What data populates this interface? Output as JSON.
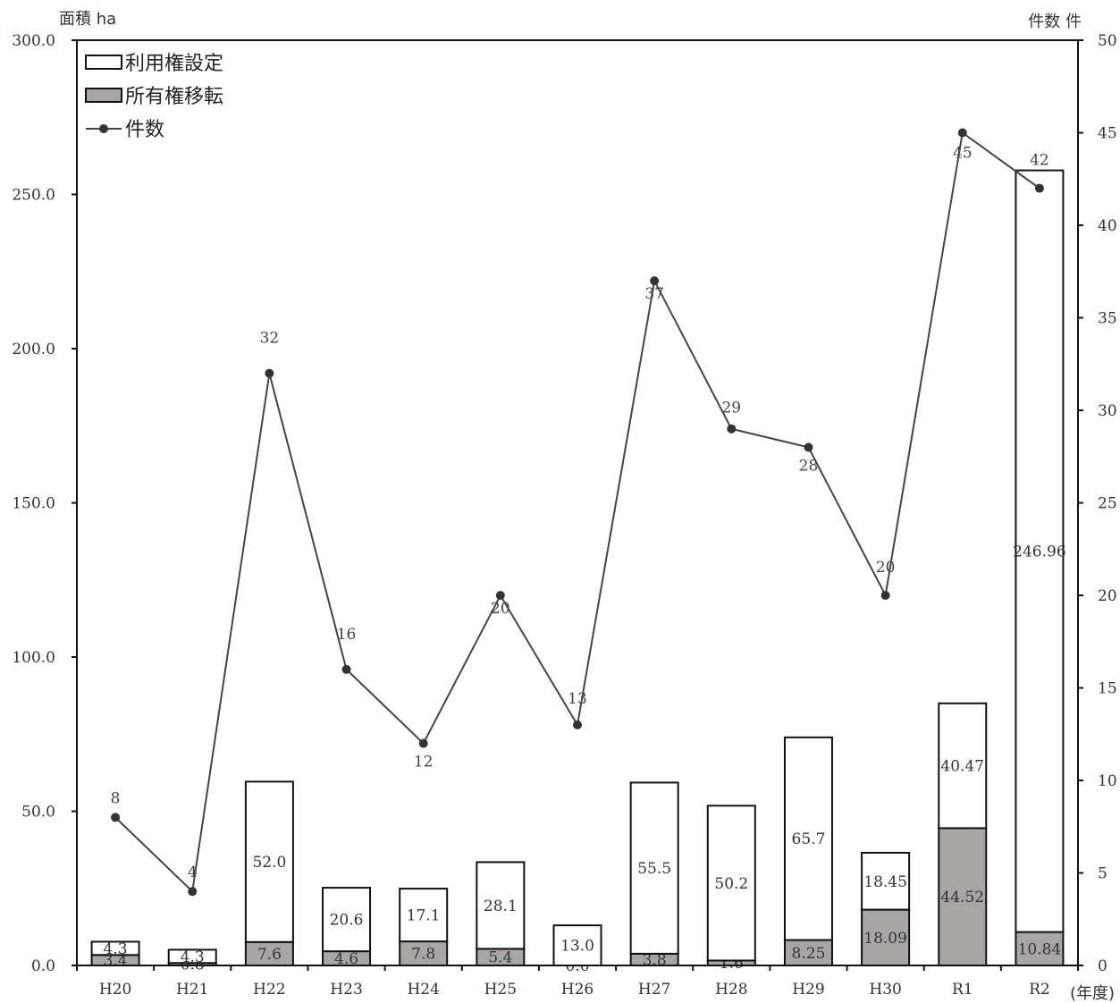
{
  "chart_data": {
    "type": "bar",
    "stacked": true,
    "categories": [
      "H20",
      "H21",
      "H22",
      "H23",
      "H24",
      "H25",
      "H26",
      "H27",
      "H28",
      "H29",
      "H30",
      "R1",
      "R2"
    ],
    "series": [
      {
        "name": "所有権移転",
        "kind": "bar",
        "axis": "left",
        "color": "#a9a5a5",
        "values": [
          3.4,
          0.8,
          7.6,
          4.6,
          7.8,
          5.4,
          0.0,
          3.8,
          1.6,
          8.25,
          18.09,
          44.52,
          10.84
        ],
        "labels": [
          "3.4",
          "0.8",
          "7.6",
          "4.6",
          "7.8",
          "5.4",
          "0.0",
          "3.8",
          "1.6",
          "8.25",
          "18.09",
          "44.52",
          "10.84"
        ]
      },
      {
        "name": "利用権設定",
        "kind": "bar",
        "axis": "left",
        "color": "#ffffff",
        "values": [
          4.3,
          4.3,
          52.0,
          20.6,
          17.1,
          28.1,
          13.0,
          55.5,
          50.2,
          65.7,
          18.45,
          40.47,
          246.96
        ],
        "labels": [
          "4.3",
          "4.3",
          "52.0",
          "20.6",
          "17.1",
          "28.1",
          "13.0",
          "55.5",
          "50.2",
          "65.7",
          "18.45",
          "40.47",
          "246.96"
        ]
      },
      {
        "name": "件数",
        "kind": "line",
        "axis": "right",
        "color": "#444444",
        "values": [
          8,
          4,
          32,
          16,
          12,
          20,
          13,
          37,
          29,
          28,
          20,
          45,
          42
        ],
        "labels": [
          "8",
          "4",
          "32",
          "16",
          "12",
          "20",
          "13",
          "37",
          "29",
          "28",
          "20",
          "45",
          "42"
        ]
      }
    ],
    "ylabel": "面積 ha",
    "y2label": "件数 件",
    "xlabel": "(年度)",
    "ylim": [
      0,
      300
    ],
    "y2lim": [
      0,
      50
    ],
    "yticks": [
      "0.0",
      "50.0",
      "100.0",
      "150.0",
      "200.0",
      "250.0",
      "300.0"
    ],
    "y2ticks": [
      "0",
      "5",
      "10",
      "15",
      "20",
      "25",
      "30",
      "35",
      "40",
      "45",
      "50"
    ],
    "legend_position": "top-left",
    "grid": false
  }
}
